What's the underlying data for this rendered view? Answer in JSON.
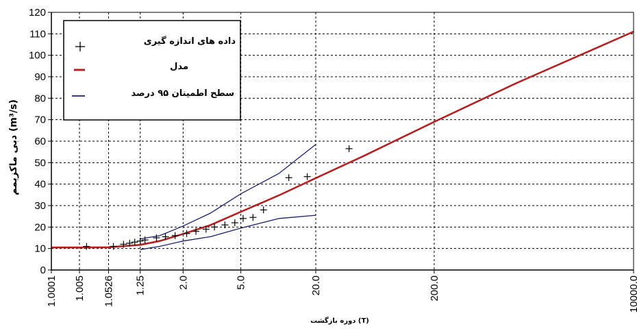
{
  "chart_data": {
    "type": "line",
    "xlabel": "دوره بازگشت (T)",
    "ylabel": "دبی ماکزیمم (m³/s)",
    "ylim": [
      0,
      120
    ],
    "x_scale": "return-period (Gumbel probability)",
    "x_tick_labels": [
      "1.0001",
      "1.005",
      "1.0526",
      "1.25",
      "2.0",
      "5.0",
      "20.0",
      "200.0",
      "10000.0"
    ],
    "y_ticks": [
      0,
      10,
      20,
      30,
      40,
      50,
      60,
      70,
      80,
      90,
      100,
      110,
      120
    ],
    "grid": true,
    "legend_position": "top-left",
    "series": [
      {
        "name": "داده های اندازه گیری",
        "marker": "plus",
        "color": "#000000",
        "points": [
          [
            1.01,
            11
          ],
          [
            1.07,
            11
          ],
          [
            1.12,
            12
          ],
          [
            1.16,
            12.5
          ],
          [
            1.2,
            13
          ],
          [
            1.25,
            13.5
          ],
          [
            1.3,
            14
          ],
          [
            1.45,
            15
          ],
          [
            1.6,
            15.5
          ],
          [
            1.8,
            16
          ],
          [
            2.1,
            17
          ],
          [
            2.4,
            18
          ],
          [
            2.8,
            19
          ],
          [
            3.2,
            20
          ],
          [
            3.8,
            21
          ],
          [
            4.5,
            22
          ],
          [
            5.2,
            24
          ],
          [
            6.2,
            24.5
          ],
          [
            7.5,
            28
          ],
          [
            12,
            43
          ],
          [
            17,
            43.5
          ],
          [
            38,
            56.5
          ]
        ]
      },
      {
        "name": "مدل",
        "color": "#b22222",
        "points": [
          [
            1.0001,
            10.5
          ],
          [
            1.005,
            10.5
          ],
          [
            1.0526,
            10.6
          ],
          [
            1.25,
            11.7
          ],
          [
            1.5,
            13.5
          ],
          [
            2.0,
            16.8
          ],
          [
            3.0,
            20.9
          ],
          [
            5.0,
            27.1
          ],
          [
            10.0,
            34.8
          ],
          [
            20.0,
            42.8
          ],
          [
            50.0,
            53
          ],
          [
            200.0,
            69
          ],
          [
            1000.0,
            87
          ],
          [
            10000.0,
            111
          ]
        ]
      },
      {
        "name": "سطح اطمینان ۹۵ درصد",
        "color": "#1a1f6e",
        "upper": [
          [
            1.25,
            14.5
          ],
          [
            1.5,
            16
          ],
          [
            2.0,
            20.5
          ],
          [
            3.0,
            26.5
          ],
          [
            5.0,
            35.5
          ],
          [
            10.0,
            45
          ],
          [
            20.0,
            58.5
          ]
        ],
        "lower": [
          [
            1.25,
            9.5
          ],
          [
            1.5,
            11
          ],
          [
            2.0,
            13.5
          ],
          [
            3.0,
            15.5
          ],
          [
            5.0,
            19.5
          ],
          [
            10.0,
            24
          ],
          [
            20.0,
            25.5
          ]
        ]
      }
    ]
  },
  "colors": {
    "model": "#b22222",
    "confidence": "#1a1f6e",
    "measured": "#000000",
    "grid": "#000000"
  }
}
